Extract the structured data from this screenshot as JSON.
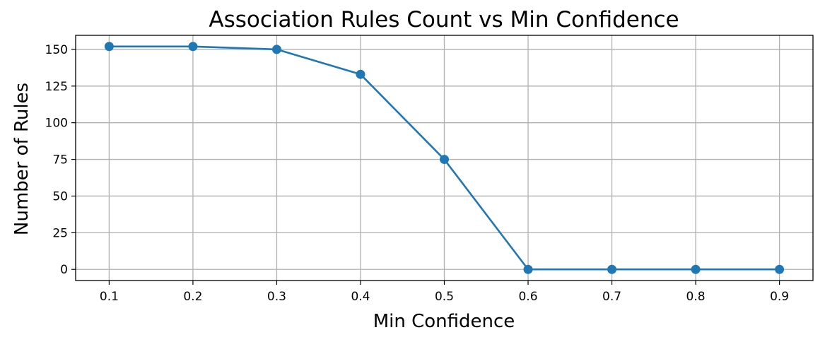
{
  "chart_data": {
    "type": "line",
    "title": "Association Rules Count vs Min Confidence",
    "xlabel": "Min Confidence",
    "ylabel": "Number of Rules",
    "x": [
      0.1,
      0.2,
      0.3,
      0.4,
      0.5,
      0.6,
      0.7,
      0.8,
      0.9
    ],
    "series": [
      {
        "values": [
          152,
          152,
          150,
          133,
          75,
          0,
          0,
          0,
          0
        ]
      }
    ],
    "x_ticks": [
      "0.1",
      "0.2",
      "0.3",
      "0.4",
      "0.5",
      "0.6",
      "0.7",
      "0.8",
      "0.9"
    ],
    "y_ticks": [
      "0",
      "25",
      "50",
      "75",
      "100",
      "125",
      "150"
    ],
    "xlim": [
      0.06,
      0.94
    ],
    "ylim": [
      -7.6,
      159.6
    ],
    "grid": true,
    "marker": "circle",
    "line_color": "#1f77b4"
  }
}
